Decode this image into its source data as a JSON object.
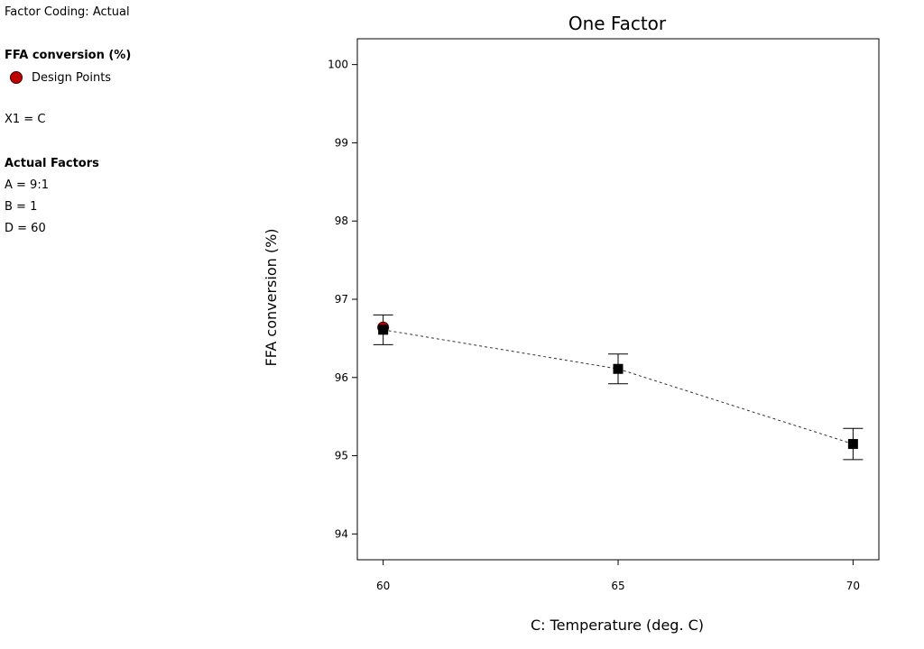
{
  "side_panel": {
    "factor_coding": "Factor Coding: Actual",
    "response_name": "FFA conversion (%)",
    "legend_label": "Design Points",
    "x1": "X1 = C",
    "actual_factors_heading": "Actual Factors",
    "factors": [
      "A = 9:1",
      "B = 1",
      "D = 60"
    ]
  },
  "colors": {
    "design_point": "#c00000",
    "mean_marker": "#000000",
    "line": "#333333"
  },
  "chart_data": {
    "type": "line",
    "title": "One Factor",
    "xlabel": "C: Temperature (deg. C)",
    "ylabel": "FFA conversion (%)",
    "x": [
      60,
      65,
      70
    ],
    "xlim": [
      59.45,
      70.55
    ],
    "ylim": [
      93.67,
      100.33
    ],
    "x_ticks": [
      60,
      65,
      70
    ],
    "y_ticks": [
      94,
      95,
      96,
      97,
      98,
      99,
      100
    ],
    "series": [
      {
        "values": [
          96.61,
          96.11,
          95.15
        ],
        "error_low": [
          96.42,
          95.92,
          94.95
        ],
        "error_high": [
          96.8,
          96.3,
          95.35
        ],
        "line_style": "dashed",
        "marker": "square"
      }
    ],
    "design_points": [
      {
        "x": 60,
        "y": 96.64
      }
    ],
    "grid": false
  }
}
